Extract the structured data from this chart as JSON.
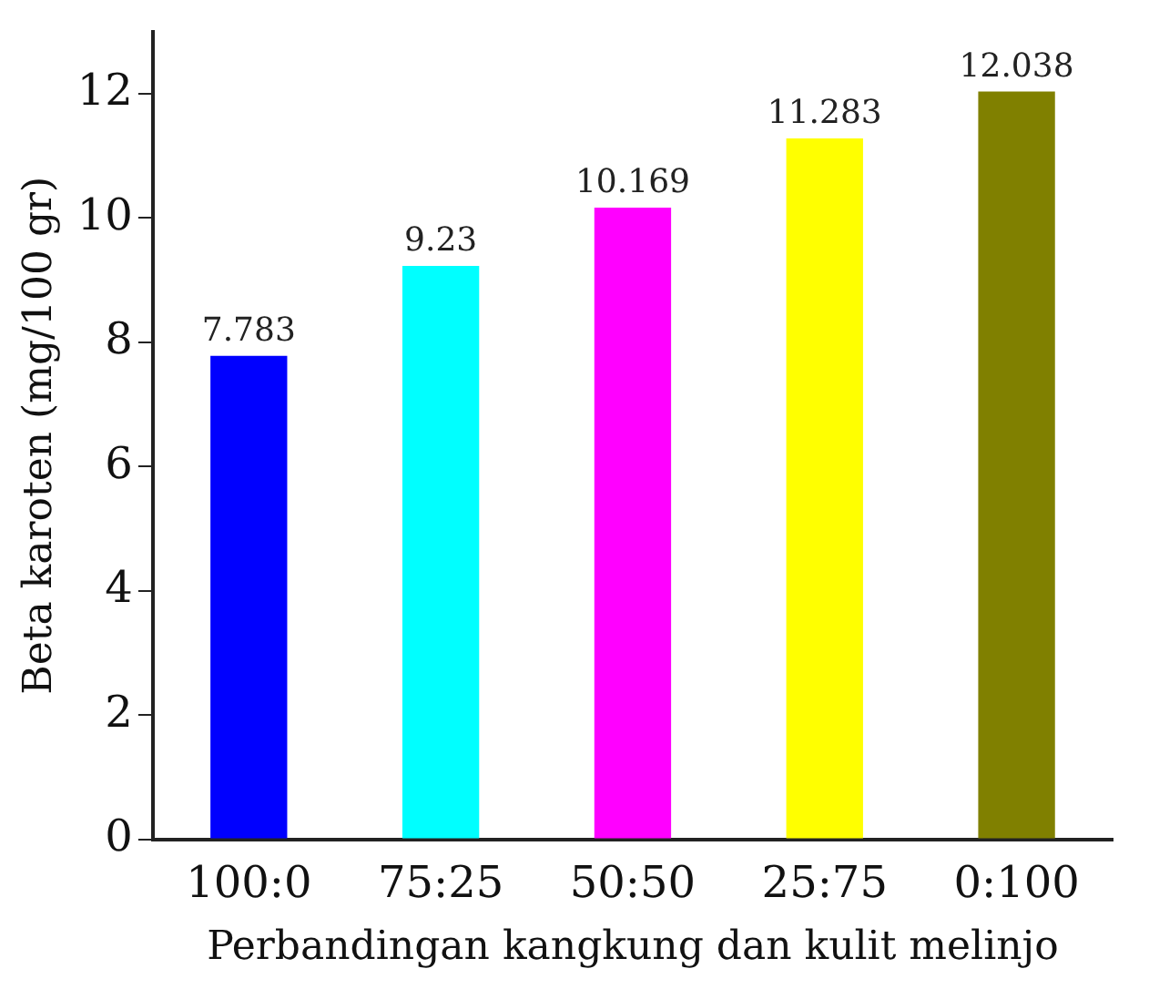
{
  "chart_data": {
    "type": "bar",
    "xlabel": "Perbandingan kangkung dan kulit melinjo",
    "ylabel": "Beta karoten (mg/100 gr)",
    "categories": [
      "100:0",
      "75:25",
      "50:50",
      "25:75",
      "0:100"
    ],
    "values": [
      7.783,
      9.23,
      10.169,
      11.283,
      12.038
    ],
    "colors": [
      "#0000ff",
      "#00ffff",
      "#ff00ff",
      "#ffff00",
      "#808000"
    ],
    "ylim": [
      0,
      13
    ],
    "yticks": [
      0,
      2,
      4,
      6,
      8,
      10,
      12
    ],
    "grid": false,
    "legend": false,
    "data_labels": true
  }
}
